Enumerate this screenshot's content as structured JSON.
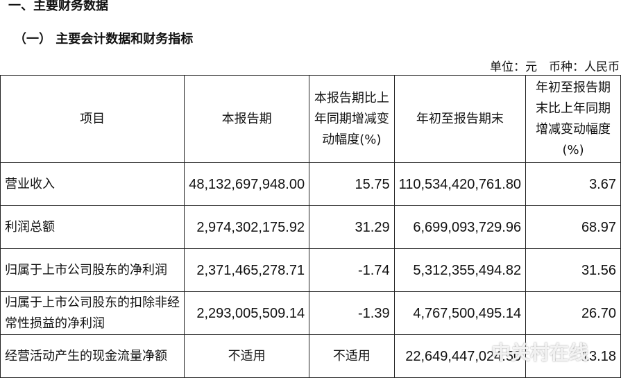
{
  "heading1": "一、主要财务数据",
  "heading2": "（一） 主要会计数据和财务指标",
  "unit": "单位：元　币种：人民币",
  "columns": [
    "项目",
    "本报告期",
    "本报告期比上年同期增减变动幅度(%)",
    "年初至报告期末",
    "年初至报告期末比上年同期增减变动幅度(%)"
  ],
  "rows": [
    {
      "item": "营业收入",
      "current": "48,132,697,948.00",
      "change": "15.75",
      "ytd": "110,534,420,761.80",
      "ytd_change": "3.67"
    },
    {
      "item": "利润总额",
      "current": "2,974,302,175.92",
      "change": "31.29",
      "ytd": "6,699,093,729.96",
      "ytd_change": "68.97"
    },
    {
      "item": "归属于上市公司股东的净利润",
      "current": "2,371,465,278.71",
      "change": "-1.74",
      "ytd": "5,312,355,494.82",
      "ytd_change": "31.56"
    },
    {
      "item": "归属于上市公司股东的扣除非经常性损益的净利润",
      "current": "2,293,005,509.14",
      "change": "-1.39",
      "ytd": "4,767,500,495.14",
      "ytd_change": "26.70"
    },
    {
      "item": "经营活动产生的现金流量净额",
      "current": "不适用",
      "change": "不适用",
      "ytd": "22,649,447,024.50",
      "ytd_change": "13.18"
    }
  ],
  "watermark": "中关村在线"
}
